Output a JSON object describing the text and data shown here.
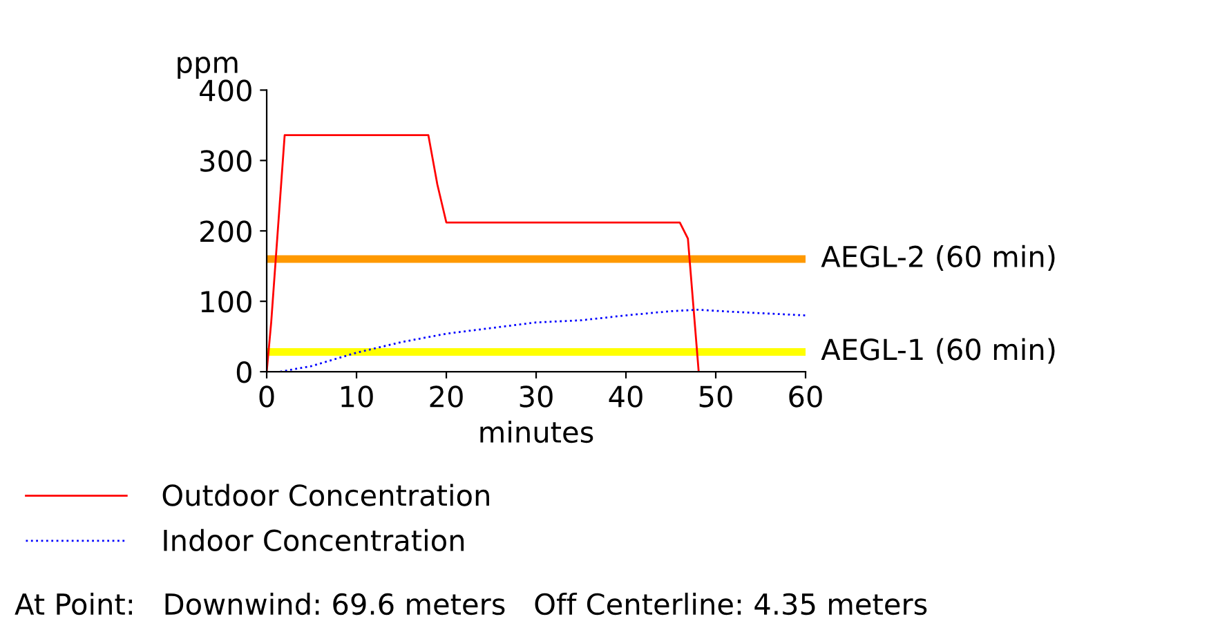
{
  "chart_data": {
    "type": "line",
    "xlabel": "minutes",
    "ylabel": "ppm",
    "xlim": [
      0,
      60
    ],
    "xticks": [
      0,
      10,
      20,
      30,
      40,
      50,
      60
    ],
    "ylim": [
      0,
      400
    ],
    "yticks": [
      0,
      100,
      200,
      300,
      400
    ],
    "series": [
      {
        "name": "Outdoor Concentration",
        "color": "#ff0000",
        "line_style": "solid",
        "x": [
          0,
          0.5,
          2,
          18,
          19,
          20,
          46,
          46.9,
          48.1
        ],
        "values": [
          0,
          70,
          336,
          336,
          266,
          212,
          212,
          189,
          0
        ]
      },
      {
        "name": "Indoor Concentration",
        "color": "#0000ff",
        "line_style": "dotted",
        "x": [
          1.5,
          5,
          10,
          15,
          20,
          25,
          30,
          35,
          40,
          45,
          48,
          52,
          60
        ],
        "values": [
          0,
          8,
          27,
          42,
          54,
          62,
          70,
          73,
          80,
          86,
          88,
          85,
          80
        ]
      }
    ],
    "ref_lines": [
      {
        "axis": "y",
        "value": 160,
        "label": "AEGL-2 (60 min)",
        "color": "#ff9900"
      },
      {
        "axis": "y",
        "value": 28,
        "label": "AEGL-1 (60 min)",
        "color": "#ffff00"
      }
    ],
    "annotations": [
      "At Point:   Downwind: 69.6 meters   Off Centerline: 4.35 meters"
    ],
    "legend": "bottom",
    "grid": false,
    "marker": "none"
  }
}
